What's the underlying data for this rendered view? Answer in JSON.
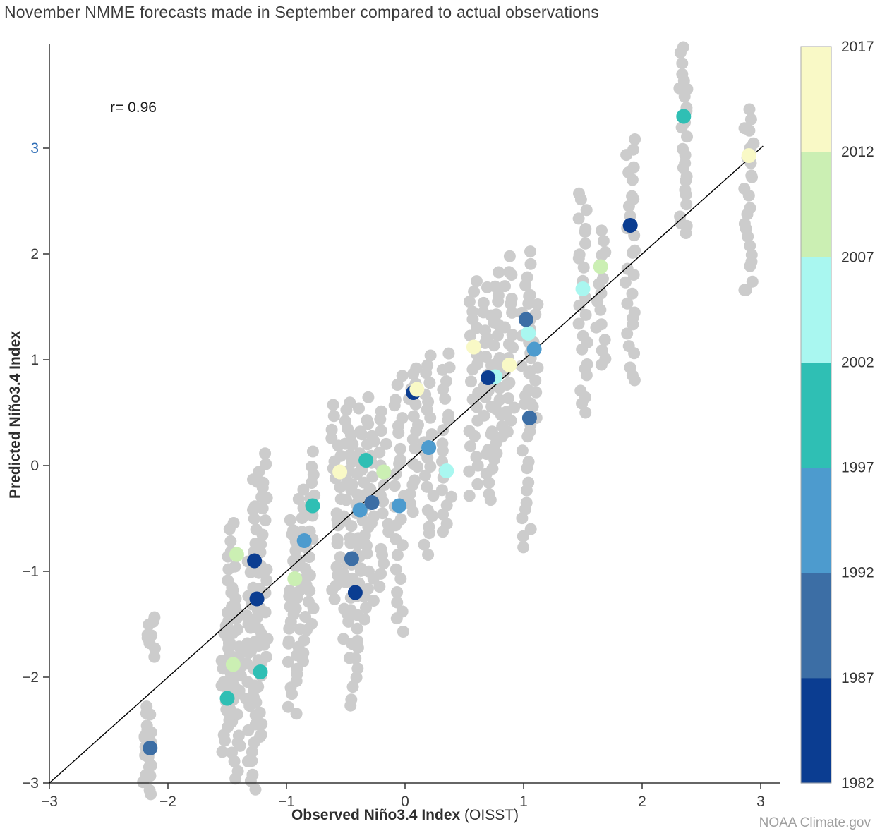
{
  "page": {
    "credit": "NOAA Climate.gov"
  },
  "chart_data": {
    "type": "scatter",
    "title": "November NMME forecasts made in September compared to actual observations",
    "xlabel": "Observed Niño3.4 Index",
    "xlabel_suffix": "(OISST)",
    "ylabel": "Predicted Niño3.4 Index",
    "annotation": "r= 0.96",
    "xlim": [
      -3,
      3.16
    ],
    "ylim": [
      -3,
      3.98
    ],
    "xticks": [
      -3,
      -2,
      -1,
      0,
      1,
      2,
      3
    ],
    "yticks": [
      -3,
      -2,
      -1,
      0,
      1,
      2,
      3
    ],
    "ytick_highlight": {
      "value": 3,
      "color": "#2e6db6"
    },
    "identity_line": {
      "x1": -3,
      "y1": -3,
      "x2": 3.02,
      "y2": 3.02
    },
    "gray_color": "#cccccc",
    "colorbar": {
      "labels_top_down": [
        "2017",
        "2012",
        "2007",
        "2002",
        "1997",
        "1992",
        "1987",
        "1982"
      ],
      "min": 1982,
      "max": 2017,
      "bands_bottom_up": [
        {
          "range": "1982-1987",
          "color": "#0b3d91"
        },
        {
          "range": "1987-1992",
          "color": "#3c6ea5"
        },
        {
          "range": "1992-1997",
          "color": "#4d9bce"
        },
        {
          "range": "1997-2002",
          "color": "#2fbfb4"
        },
        {
          "range": "2002-2007",
          "color": "#a9f7f0"
        },
        {
          "range": "2007-2012",
          "color": "#cbefb3"
        },
        {
          "range": "2012-2017",
          "color": "#f9f9c6"
        }
      ]
    },
    "ensemble_strips": [
      {
        "x": -2.17,
        "ymin": -3.08,
        "ymax": -2.3,
        "n": 20
      },
      {
        "x": -2.15,
        "ymin": -1.8,
        "ymax": -1.42,
        "n": 9
      },
      {
        "x": -1.52,
        "ymin": -2.7,
        "ymax": -1.55,
        "n": 18
      },
      {
        "x": -1.47,
        "ymin": -2.3,
        "ymax": -0.55,
        "n": 24
      },
      {
        "x": -1.42,
        "ymin": -2.95,
        "ymax": -1.2,
        "n": 26
      },
      {
        "x": -1.3,
        "ymin": -3.05,
        "ymax": -0.9,
        "n": 30
      },
      {
        "x": -1.25,
        "ymin": -2.6,
        "ymax": -0.1,
        "n": 30
      },
      {
        "x": -1.2,
        "ymin": -1.9,
        "ymax": 0.15,
        "n": 22
      },
      {
        "x": -0.95,
        "ymin": -2.35,
        "ymax": -0.5,
        "n": 24
      },
      {
        "x": -0.88,
        "ymin": -1.95,
        "ymax": -0.2,
        "n": 22
      },
      {
        "x": -0.8,
        "ymin": -1.55,
        "ymax": 0.1,
        "n": 20
      },
      {
        "x": -0.58,
        "ymin": -1.3,
        "ymax": 0.55,
        "n": 22
      },
      {
        "x": -0.48,
        "ymin": -1.8,
        "ymax": 0.6,
        "n": 26
      },
      {
        "x": -0.42,
        "ymin": -2.3,
        "ymax": 0.3,
        "n": 28
      },
      {
        "x": -0.35,
        "ymin": -1.2,
        "ymax": 0.62,
        "n": 22
      },
      {
        "x": -0.3,
        "ymin": -1.45,
        "ymax": 0.4,
        "n": 20
      },
      {
        "x": -0.18,
        "ymin": -1.15,
        "ymax": 0.5,
        "n": 18
      },
      {
        "x": -0.05,
        "ymin": -1.55,
        "ymax": 0.85,
        "n": 26
      },
      {
        "x": 0.07,
        "ymin": -0.45,
        "ymax": 0.95,
        "n": 18
      },
      {
        "x": 0.2,
        "ymin": -0.85,
        "ymax": 1.05,
        "n": 22
      },
      {
        "x": 0.35,
        "ymin": -0.65,
        "ymax": 1.05,
        "n": 20
      },
      {
        "x": 0.58,
        "ymin": -0.25,
        "ymax": 1.75,
        "n": 24
      },
      {
        "x": 0.7,
        "ymin": -0.35,
        "ymax": 1.65,
        "n": 24
      },
      {
        "x": 0.78,
        "ymin": 0.05,
        "ymax": 1.8,
        "n": 22
      },
      {
        "x": 0.88,
        "ymin": 0.3,
        "ymax": 1.95,
        "n": 20
      },
      {
        "x": 1.02,
        "ymin": -0.8,
        "ymax": 2.0,
        "n": 30
      },
      {
        "x": 1.08,
        "ymin": 0.35,
        "ymax": 1.62,
        "n": 16
      },
      {
        "x": 1.5,
        "ymin": 0.48,
        "ymax": 2.6,
        "n": 26
      },
      {
        "x": 1.65,
        "ymin": 0.95,
        "ymax": 2.2,
        "n": 16
      },
      {
        "x": 1.9,
        "ymin": 0.78,
        "ymax": 3.1,
        "n": 28
      },
      {
        "x": 2.35,
        "ymin": 2.18,
        "ymax": 3.95,
        "n": 26
      },
      {
        "x": 2.9,
        "ymin": 1.62,
        "ymax": 3.38,
        "n": 24
      }
    ],
    "mean_points": [
      {
        "x": -2.15,
        "y": -2.67,
        "band": "1987-1992"
      },
      {
        "x": -1.5,
        "y": -2.2,
        "band": "1997-2002"
      },
      {
        "x": -1.45,
        "y": -1.88,
        "band": "2007-2012"
      },
      {
        "x": -1.22,
        "y": -1.95,
        "band": "1997-2002"
      },
      {
        "x": -1.42,
        "y": -0.84,
        "band": "2007-2012"
      },
      {
        "x": -1.27,
        "y": -0.9,
        "band": "1982-1987"
      },
      {
        "x": -1.25,
        "y": -1.26,
        "band": "1982-1987"
      },
      {
        "x": -0.93,
        "y": -1.07,
        "band": "2007-2012"
      },
      {
        "x": -0.85,
        "y": -0.71,
        "band": "1992-1997"
      },
      {
        "x": -0.78,
        "y": -0.38,
        "band": "1997-2002"
      },
      {
        "x": -0.55,
        "y": -0.06,
        "band": "2012-2017"
      },
      {
        "x": -0.45,
        "y": -0.88,
        "band": "1987-1992"
      },
      {
        "x": -0.42,
        "y": -1.2,
        "band": "1982-1987"
      },
      {
        "x": -0.38,
        "y": -0.42,
        "band": "1992-1997"
      },
      {
        "x": -0.33,
        "y": 0.05,
        "band": "1997-2002"
      },
      {
        "x": -0.28,
        "y": -0.35,
        "band": "1987-1992"
      },
      {
        "x": -0.18,
        "y": -0.06,
        "band": "2007-2012"
      },
      {
        "x": -0.05,
        "y": -0.38,
        "band": "1992-1997"
      },
      {
        "x": 0.07,
        "y": 0.69,
        "band": "1982-1987"
      },
      {
        "x": 0.1,
        "y": 0.72,
        "band": "2012-2017"
      },
      {
        "x": 0.2,
        "y": 0.17,
        "band": "1992-1997"
      },
      {
        "x": 0.35,
        "y": -0.05,
        "band": "2002-2007"
      },
      {
        "x": 0.58,
        "y": 1.12,
        "band": "2012-2017"
      },
      {
        "x": 0.76,
        "y": 0.84,
        "band": "2002-2007"
      },
      {
        "x": 0.7,
        "y": 0.83,
        "band": "1982-1987"
      },
      {
        "x": 0.88,
        "y": 0.95,
        "band": "2012-2017"
      },
      {
        "x": 1.05,
        "y": 0.45,
        "band": "1987-1992"
      },
      {
        "x": 1.09,
        "y": 1.1,
        "band": "1992-1997"
      },
      {
        "x": 1.04,
        "y": 1.25,
        "band": "2002-2007"
      },
      {
        "x": 1.02,
        "y": 1.38,
        "band": "1987-1992"
      },
      {
        "x": 1.5,
        "y": 1.67,
        "band": "2002-2007"
      },
      {
        "x": 1.65,
        "y": 1.88,
        "band": "2007-2012"
      },
      {
        "x": 1.9,
        "y": 2.27,
        "band": "1982-1987"
      },
      {
        "x": 2.35,
        "y": 3.3,
        "band": "1997-2002"
      },
      {
        "x": 2.9,
        "y": 2.93,
        "band": "2012-2017"
      }
    ]
  }
}
